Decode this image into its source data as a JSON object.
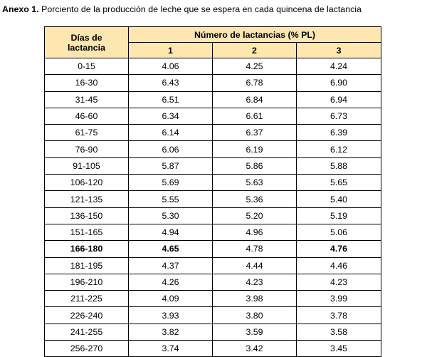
{
  "caption": {
    "label": "Anexo 1.",
    "text": "Porciento de la producción de leche que se espera en cada quincena de lactancia"
  },
  "table": {
    "header_days_line1": "Días de",
    "header_days_line2": "lactancia",
    "header_group": "Número de lactancias (% PL)",
    "columns": [
      "1",
      "2",
      "3"
    ],
    "header_bg_color": "#fde6b0",
    "rows": [
      {
        "days": "0-15",
        "v1": "4.06",
        "v2": "4.25",
        "v3": "4.24",
        "bold": false
      },
      {
        "days": "16-30",
        "v1": "6.43",
        "v2": "6.78",
        "v3": "6.90",
        "bold": false
      },
      {
        "days": "31-45",
        "v1": "6.51",
        "v2": "6.84",
        "v3": "6.94",
        "bold": false
      },
      {
        "days": "46-60",
        "v1": "6.34",
        "v2": "6.61",
        "v3": "6.73",
        "bold": false
      },
      {
        "days": "61-75",
        "v1": "6.14",
        "v2": "6.37",
        "v3": "6.39",
        "bold": false
      },
      {
        "days": "76-90",
        "v1": "6.06",
        "v2": "6.19",
        "v3": "6.12",
        "bold": false
      },
      {
        "days": "91-105",
        "v1": "5.87",
        "v2": "5.86",
        "v3": "5.88",
        "bold": false
      },
      {
        "days": "106-120",
        "v1": "5.69",
        "v2": "5.63",
        "v3": "5.65",
        "bold": false
      },
      {
        "days": "121-135",
        "v1": "5.55",
        "v2": "5.36",
        "v3": "5.40",
        "bold": false
      },
      {
        "days": "136-150",
        "v1": "5.30",
        "v2": "5.20",
        "v3": "5.19",
        "bold": false
      },
      {
        "days": "151-165",
        "v1": "4.94",
        "v2": "4.96",
        "v3": "5.06",
        "bold": false
      },
      {
        "days": "166-180",
        "v1": "4.65",
        "v2": "4.78",
        "v3": "4.76",
        "bold": true
      },
      {
        "days": "181-195",
        "v1": "4.37",
        "v2": "4.44",
        "v3": "4.46",
        "bold": false
      },
      {
        "days": "196-210",
        "v1": "4.26",
        "v2": "4.23",
        "v3": "4.23",
        "bold": false
      },
      {
        "days": "211-225",
        "v1": "4.09",
        "v2": "3.98",
        "v3": "3.99",
        "bold": false
      },
      {
        "days": "226-240",
        "v1": "3.93",
        "v2": "3.80",
        "v3": "3.78",
        "bold": false
      },
      {
        "days": "241-255",
        "v1": "3.82",
        "v2": "3.59",
        "v3": "3.58",
        "bold": false
      },
      {
        "days": "256-270",
        "v1": "3.74",
        "v2": "3.42",
        "v3": "3.45",
        "bold": false
      }
    ]
  }
}
